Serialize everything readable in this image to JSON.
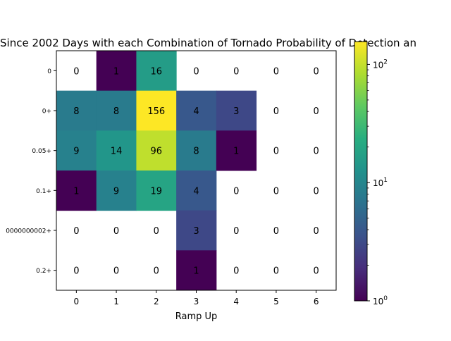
{
  "chart_data": {
    "type": "heatmap",
    "title": "Since 2002 Days with each Combination of Tornado Probability of Detection an",
    "xlabel": "Ramp Up",
    "ylabel": "",
    "x_categories": [
      "0",
      "1",
      "2",
      "3",
      "4",
      "5",
      "6"
    ],
    "y_categories": [
      "0",
      "0+",
      "0.05+",
      "0.1+",
      "0000000002+",
      "0.2+"
    ],
    "values": [
      [
        0,
        1,
        16,
        0,
        0,
        0,
        0
      ],
      [
        8,
        8,
        156,
        4,
        3,
        0,
        0
      ],
      [
        9,
        14,
        96,
        8,
        1,
        0,
        0
      ],
      [
        1,
        9,
        19,
        4,
        0,
        0,
        0
      ],
      [
        0,
        0,
        0,
        3,
        0,
        0,
        0
      ],
      [
        0,
        0,
        0,
        1,
        0,
        0,
        0
      ]
    ],
    "colorbar": {
      "scale": "log",
      "range": [
        1,
        156
      ],
      "colormap": "viridis",
      "tick_labels": [
        "10^0",
        "10^1",
        "10^2"
      ]
    },
    "zero_cells": "blank"
  }
}
